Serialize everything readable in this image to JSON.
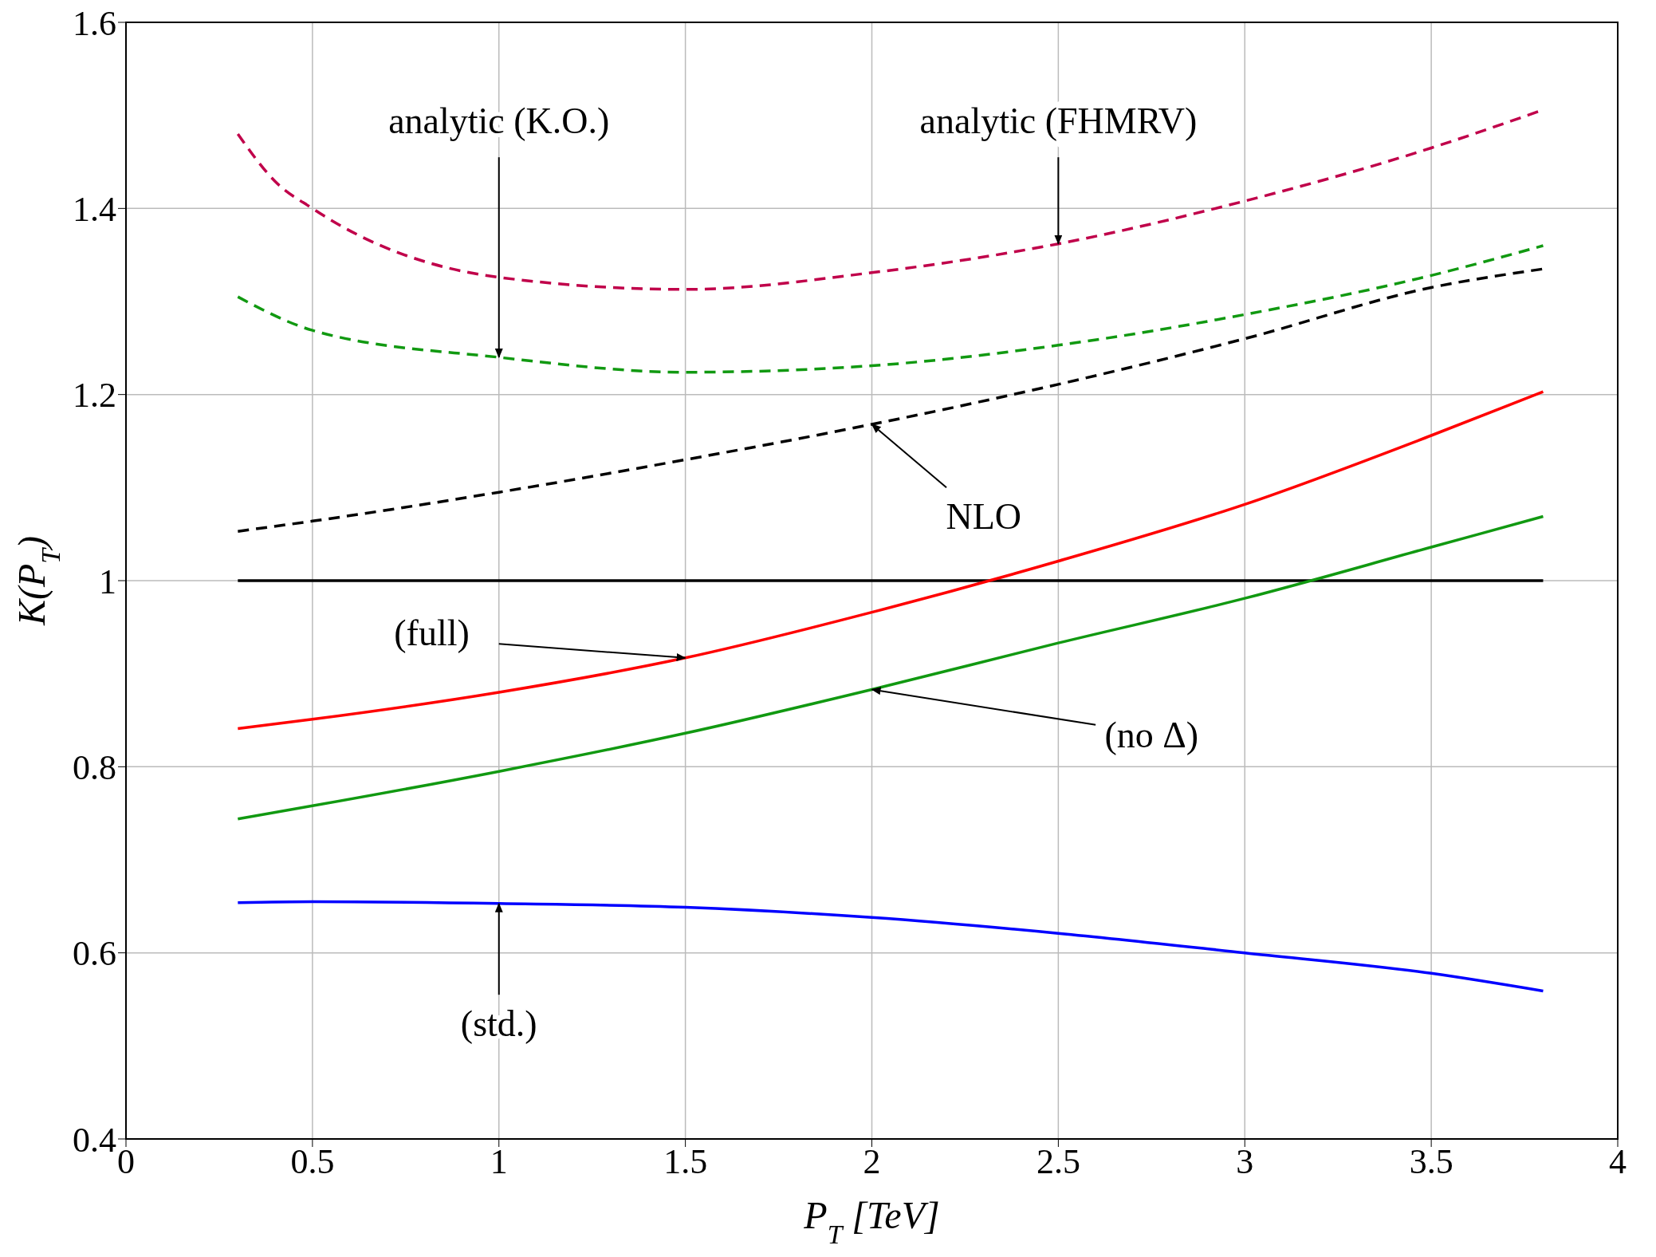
{
  "chart_data": {
    "type": "line",
    "xlabel": "P$_{T}$ [TeV]",
    "ylabel": "K(P$_{T}$)",
    "xlim": [
      0,
      4
    ],
    "xticks": [
      0,
      0.5,
      1,
      1.5,
      2,
      2.5,
      3,
      3.5,
      4
    ],
    "ylim": [
      0.4,
      1.6
    ],
    "yticks": [
      0.4,
      0.6,
      0.8,
      1,
      1.2,
      1.4,
      1.6
    ],
    "grid": true,
    "marker": "none",
    "x": [
      0.3,
      0.5,
      1,
      1.5,
      2,
      2.5,
      3,
      3.5,
      3.8
    ],
    "series": [
      {
        "color": "#c0004a",
        "line_style": "dashed",
        "x": [
          0.3,
          0.4,
          0.5,
          1,
          1.5,
          2,
          2.5,
          3,
          3.5,
          3.8
        ],
        "values": [
          1.48,
          1.429,
          1.4,
          1.326,
          1.313,
          1.331,
          1.362,
          1.408,
          1.465,
          1.506
        ]
      },
      {
        "color": "#119911",
        "line_style": "dashed",
        "values": [
          1.305,
          1.269,
          1.24,
          1.224,
          1.231,
          1.253,
          1.286,
          1.328,
          1.36
        ]
      },
      {
        "color": "#000000",
        "line_style": "dashed",
        "values": [
          1.053,
          1.064,
          1.095,
          1.13,
          1.168,
          1.211,
          1.26,
          1.315,
          1.335
        ]
      },
      {
        "color": "#000000",
        "line_style": "solid",
        "values": [
          1,
          1,
          1,
          1,
          1,
          1,
          1,
          1,
          1
        ]
      },
      {
        "color": "#ff0000",
        "line_style": "solid",
        "values": [
          0.841,
          0.851,
          0.88,
          0.917,
          0.966,
          1.021,
          1.082,
          1.156,
          1.203
        ]
      },
      {
        "color": "#119911",
        "line_style": "solid",
        "values": [
          0.744,
          0.758,
          0.795,
          0.836,
          0.883,
          0.933,
          0.981,
          1.036,
          1.069
        ]
      },
      {
        "color": "#0000ff",
        "line_style": "solid",
        "values": [
          0.654,
          0.655,
          0.653,
          0.649,
          0.638,
          0.621,
          0.6,
          0.578,
          0.559
        ]
      }
    ],
    "annotations": [
      {
        "text": "analytic (K.O.)",
        "x": 1,
        "y": 1.24
      },
      {
        "text": "analytic (FHMRV)",
        "x": 2.5,
        "y": 1.362
      },
      {
        "text": "NLO",
        "x": 2,
        "y": 1.168
      },
      {
        "text": "(full)",
        "x": 1.5,
        "y": 0.917
      },
      {
        "text": "(no Δ)",
        "x": 2,
        "y": 0.883
      },
      {
        "text": "(std.)",
        "x": 1,
        "y": 0.653
      }
    ]
  }
}
